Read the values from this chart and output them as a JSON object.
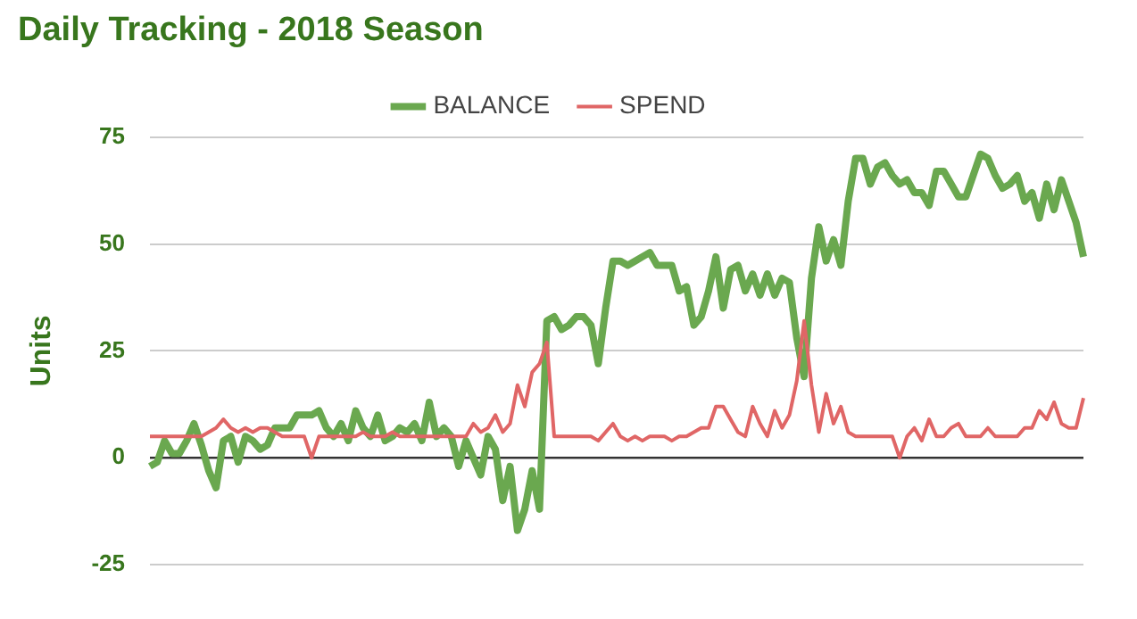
{
  "chart_data": {
    "type": "line",
    "title": "Daily Tracking - 2018 Season",
    "ylabel": "Units",
    "categories": [
      null,
      null,
      null,
      null,
      null,
      null,
      null,
      null,
      null,
      null,
      null,
      null,
      null,
      null,
      null,
      null,
      null,
      null,
      null,
      null,
      null,
      null,
      null,
      null,
      null,
      null,
      null,
      null,
      null,
      null,
      null,
      null,
      null,
      null,
      null,
      null,
      null,
      null,
      null,
      null,
      null,
      null,
      null,
      null,
      null,
      null,
      null,
      null,
      null,
      null,
      null,
      null,
      null,
      null,
      null,
      null,
      null,
      null,
      null,
      null,
      null,
      null,
      null,
      null,
      null,
      null,
      null,
      null,
      null,
      null,
      null,
      null,
      null,
      null,
      null,
      null,
      null,
      null,
      null,
      null,
      null,
      null,
      null,
      null,
      null,
      null,
      null,
      null,
      null,
      null,
      null,
      null,
      null,
      null,
      null,
      null,
      null,
      null,
      null,
      null,
      null,
      null,
      null,
      null,
      null,
      null,
      null,
      null,
      null,
      null,
      null,
      null,
      null,
      null,
      null,
      null,
      null,
      null,
      null,
      null,
      null,
      null,
      null,
      null,
      null,
      null,
      null,
      null
    ],
    "series": [
      {
        "name": "BALANCE",
        "color": "#6aa84f",
        "values": [
          -2,
          -1,
          4,
          1,
          1,
          4,
          8,
          3,
          -3,
          -7,
          4,
          5,
          -1,
          5,
          4,
          2,
          3,
          7,
          7,
          7,
          10,
          10,
          10,
          11,
          7,
          5,
          8,
          4,
          11,
          7,
          5,
          10,
          4,
          5,
          7,
          6,
          8,
          4,
          13,
          5,
          7,
          5,
          -2,
          4,
          0,
          -4,
          5,
          2,
          -10,
          -2,
          -17,
          -12,
          -3,
          -12,
          32,
          33,
          30,
          31,
          33,
          33,
          31,
          22,
          35,
          46,
          46,
          45,
          46,
          47,
          48,
          45,
          45,
          45,
          39,
          40,
          31,
          33,
          39,
          47,
          35,
          44,
          45,
          39,
          43,
          38,
          43,
          38,
          42,
          41,
          28,
          19,
          42,
          54,
          46,
          51,
          45,
          60,
          70,
          70,
          64,
          68,
          69,
          66,
          64,
          65,
          62,
          62,
          59,
          67,
          67,
          64,
          61,
          61,
          66,
          71,
          70,
          66,
          63,
          64,
          66,
          60,
          62,
          56,
          64,
          58,
          65,
          60,
          55,
          47
        ]
      },
      {
        "name": "SPEND",
        "color": "#e06666",
        "values": [
          5,
          5,
          5,
          5,
          5,
          5,
          5,
          5,
          6,
          7,
          9,
          7,
          6,
          7,
          6,
          7,
          7,
          6,
          5,
          5,
          5,
          5,
          0,
          5,
          5,
          5,
          5,
          5,
          5,
          6,
          5,
          5,
          5,
          6,
          5,
          5,
          5,
          5,
          5,
          5,
          5,
          5,
          5,
          5,
          8,
          6,
          7,
          10,
          6,
          8,
          17,
          12,
          20,
          22,
          27,
          5,
          5,
          5,
          5,
          5,
          5,
          4,
          6,
          8,
          5,
          4,
          5,
          4,
          5,
          5,
          5,
          4,
          5,
          5,
          6,
          7,
          7,
          12,
          12,
          9,
          6,
          5,
          12,
          8,
          5,
          11,
          7,
          10,
          18,
          32,
          17,
          6,
          15,
          8,
          12,
          6,
          5,
          5,
          5,
          5,
          5,
          5,
          0,
          5,
          7,
          4,
          9,
          5,
          5,
          7,
          8,
          5,
          5,
          5,
          7,
          5,
          5,
          5,
          5,
          7,
          7,
          11,
          9,
          13,
          8,
          7,
          7,
          14
        ]
      }
    ],
    "ylim": [
      -25,
      75
    ],
    "yticks": [
      -25,
      0,
      25,
      50,
      75
    ],
    "grid": "y",
    "legend": "top",
    "marker": "none",
    "line_style": "solid"
  }
}
